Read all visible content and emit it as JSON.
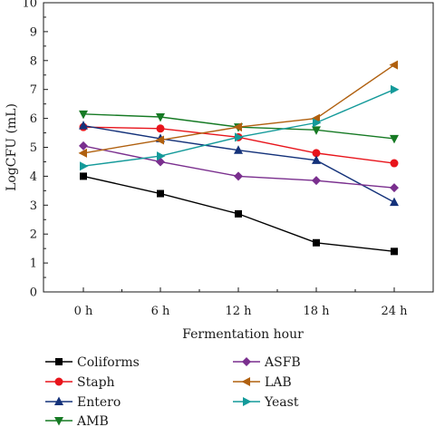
{
  "chart_data": {
    "type": "line",
    "xlabel": "Fermentation hour",
    "ylabel": "LogCFU (mL)",
    "categories": [
      "0 h",
      "6 h",
      "12 h",
      "18 h",
      "24 h"
    ],
    "ylim": [
      0,
      10
    ],
    "yticks": [
      0,
      1,
      2,
      3,
      4,
      5,
      6,
      7,
      8,
      9,
      10
    ],
    "grid": false,
    "legend_position": "bottom",
    "series": [
      {
        "name": "Coliforms",
        "color": "#000000",
        "marker": "square",
        "values": [
          4.0,
          3.4,
          2.7,
          1.7,
          1.4
        ]
      },
      {
        "name": "Staph",
        "color": "#e8141b",
        "marker": "circle",
        "values": [
          5.7,
          5.65,
          5.35,
          4.8,
          4.45
        ]
      },
      {
        "name": "Entero",
        "color": "#14327a",
        "marker": "triangle-up",
        "values": [
          5.75,
          5.3,
          4.9,
          4.55,
          3.1
        ]
      },
      {
        "name": "AMB",
        "color": "#167a24",
        "marker": "triangle-down",
        "values": [
          6.15,
          6.05,
          5.7,
          5.6,
          5.3
        ]
      },
      {
        "name": "ASFB",
        "color": "#7a2f8e",
        "marker": "diamond",
        "values": [
          5.05,
          4.5,
          4.0,
          3.85,
          3.6
        ]
      },
      {
        "name": "LAB",
        "color": "#b0600f",
        "marker": "triangle-left",
        "values": [
          4.8,
          5.25,
          5.7,
          6.0,
          7.85
        ]
      },
      {
        "name": "Yeast",
        "color": "#149a9a",
        "marker": "triangle-right",
        "values": [
          4.35,
          4.7,
          5.35,
          5.85,
          7.0
        ]
      }
    ]
  }
}
